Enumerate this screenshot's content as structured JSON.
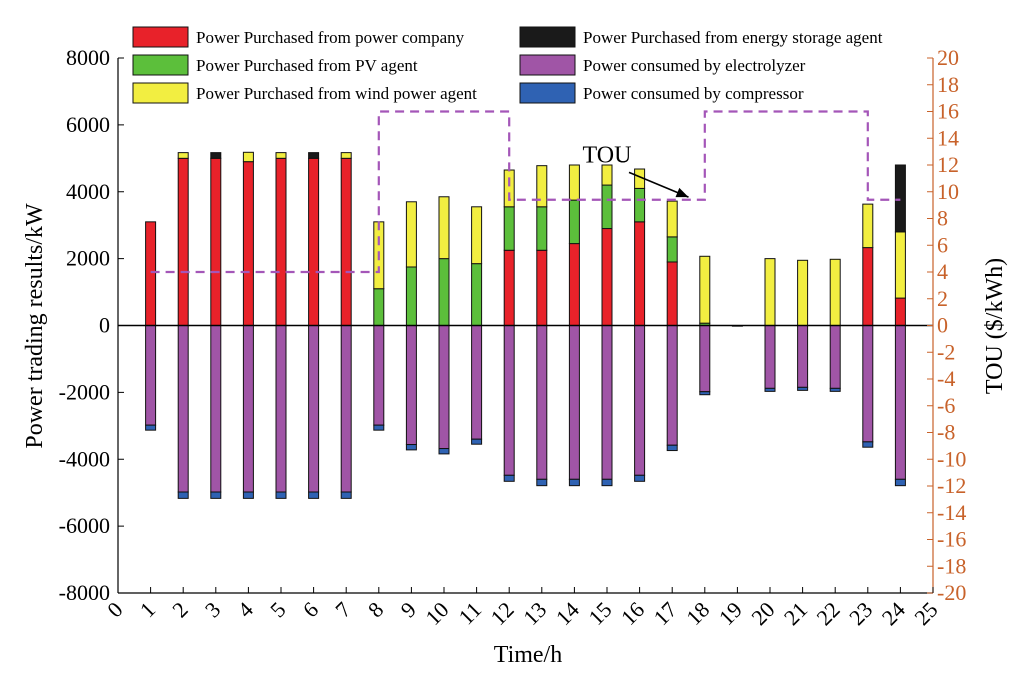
{
  "chart_data": {
    "type": "bar",
    "stacked": true,
    "xlabel": "Time/h",
    "ylabel": "Power trading results/kW",
    "ylabel_right": "TOU ($/kWh)",
    "xlim": [
      0,
      25
    ],
    "ylim": [
      -8000,
      8000
    ],
    "ylim_right": [
      -20,
      20
    ],
    "x_ticks": [
      0,
      1,
      2,
      3,
      4,
      5,
      6,
      7,
      8,
      9,
      10,
      11,
      12,
      13,
      14,
      15,
      16,
      17,
      18,
      19,
      20,
      21,
      22,
      23,
      24,
      25
    ],
    "y_ticks": [
      -8000,
      -6000,
      -4000,
      -2000,
      0,
      2000,
      4000,
      6000,
      8000
    ],
    "y_ticks_right": [
      -20,
      -18,
      -16,
      -14,
      -12,
      -10,
      -8,
      -6,
      -4,
      -2,
      0,
      2,
      4,
      6,
      8,
      10,
      12,
      14,
      16,
      18,
      20
    ],
    "categories": [
      1,
      2,
      3,
      4,
      5,
      6,
      7,
      8,
      9,
      10,
      11,
      12,
      13,
      14,
      15,
      16,
      17,
      18,
      19,
      20,
      21,
      22,
      23,
      24
    ],
    "series": [
      {
        "name": "Power Purchased from power company",
        "color": "#e8222a",
        "sign": "positive",
        "values": [
          3100,
          5000,
          5000,
          4900,
          5000,
          5000,
          5000,
          0,
          0,
          0,
          0,
          2250,
          2250,
          2450,
          2900,
          3100,
          1900,
          0,
          0,
          0,
          0,
          0,
          2330,
          820
        ]
      },
      {
        "name": "Power Purchased from PV agent",
        "color": "#5cbf3b",
        "sign": "positive",
        "values": [
          0,
          0,
          0,
          0,
          0,
          0,
          0,
          1100,
          1750,
          2000,
          1850,
          1300,
          1300,
          1300,
          1300,
          1000,
          750,
          70,
          0,
          0,
          0,
          0,
          0,
          0
        ]
      },
      {
        "name": "Power Purchased from wind power agent",
        "color": "#f2ee41",
        "sign": "positive",
        "values": [
          0,
          170,
          0,
          280,
          170,
          0,
          170,
          2000,
          1950,
          1850,
          1700,
          1100,
          1230,
          1050,
          600,
          580,
          1070,
          2000,
          0,
          2000,
          1950,
          1980,
          1300,
          1980
        ]
      },
      {
        "name": "Power Purchased from energy storage agent",
        "color": "#1a1a1a",
        "sign": "positive",
        "values": [
          0,
          0,
          170,
          0,
          0,
          170,
          0,
          0,
          0,
          0,
          0,
          0,
          0,
          0,
          0,
          0,
          0,
          0,
          0,
          0,
          0,
          0,
          0,
          2000
        ]
      },
      {
        "name": "Power consumed by electrolyzer",
        "color": "#a055a6",
        "sign": "negative",
        "values": [
          -2980,
          -4980,
          -4980,
          -4980,
          -4980,
          -4980,
          -4980,
          -2980,
          -3560,
          -3680,
          -3400,
          -4480,
          -4600,
          -4600,
          -4600,
          -4480,
          -3580,
          -1980,
          -20,
          -1880,
          -1850,
          -1880,
          -3480,
          -4600
        ]
      },
      {
        "name": "Power consumed by compressor",
        "color": "#2f62b3",
        "sign": "negative",
        "values": [
          -150,
          -190,
          -190,
          -190,
          -190,
          -190,
          -190,
          -150,
          -160,
          -160,
          -150,
          -180,
          -190,
          -190,
          -190,
          -180,
          -160,
          -90,
          0,
          -90,
          -90,
          -90,
          -160,
          -190
        ]
      }
    ],
    "tou_line": {
      "name": "TOU",
      "color": "#a456b8",
      "style": "dashed",
      "x": [
        1,
        8,
        8,
        12,
        12,
        18,
        18,
        23,
        23,
        24
      ],
      "y": [
        4,
        4,
        16,
        16,
        9.4,
        9.4,
        16,
        16,
        9.4,
        9.4
      ]
    },
    "annotations": [
      {
        "text": "TOU",
        "points_to": [
          17.5,
          9.6
        ],
        "label_at": [
          15.0,
          12.2
        ]
      }
    ],
    "legend": {
      "placement": "top",
      "columns": 2,
      "items": [
        "Power Purchased from power company",
        "Power Purchased from energy storage agent",
        "Power Purchased from PV agent",
        "Power consumed by electrolyzer",
        "Power Purchased from wind power agent",
        "Power consumed by compressor"
      ]
    },
    "colors": {
      "right_axis": "#c8622a",
      "zero_line": "#000000"
    }
  }
}
